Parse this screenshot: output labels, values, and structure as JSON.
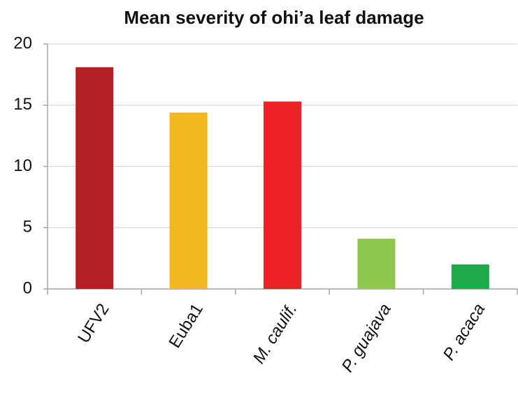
{
  "chart_data": {
    "type": "bar",
    "title": "Mean severity of ohi’a leaf damage",
    "categories": [
      "UFV2",
      "Euba1",
      "M. caulif.",
      "P. guajava",
      "P. acaca"
    ],
    "values": [
      18.1,
      14.4,
      15.3,
      4.1,
      2.0
    ],
    "colors": [
      "#b52025",
      "#f2b81e",
      "#ec2227",
      "#8fc74f",
      "#1faa4a"
    ],
    "ylim": [
      0,
      20
    ],
    "yticks": [
      0,
      5,
      10,
      15,
      20
    ],
    "grid": true
  }
}
